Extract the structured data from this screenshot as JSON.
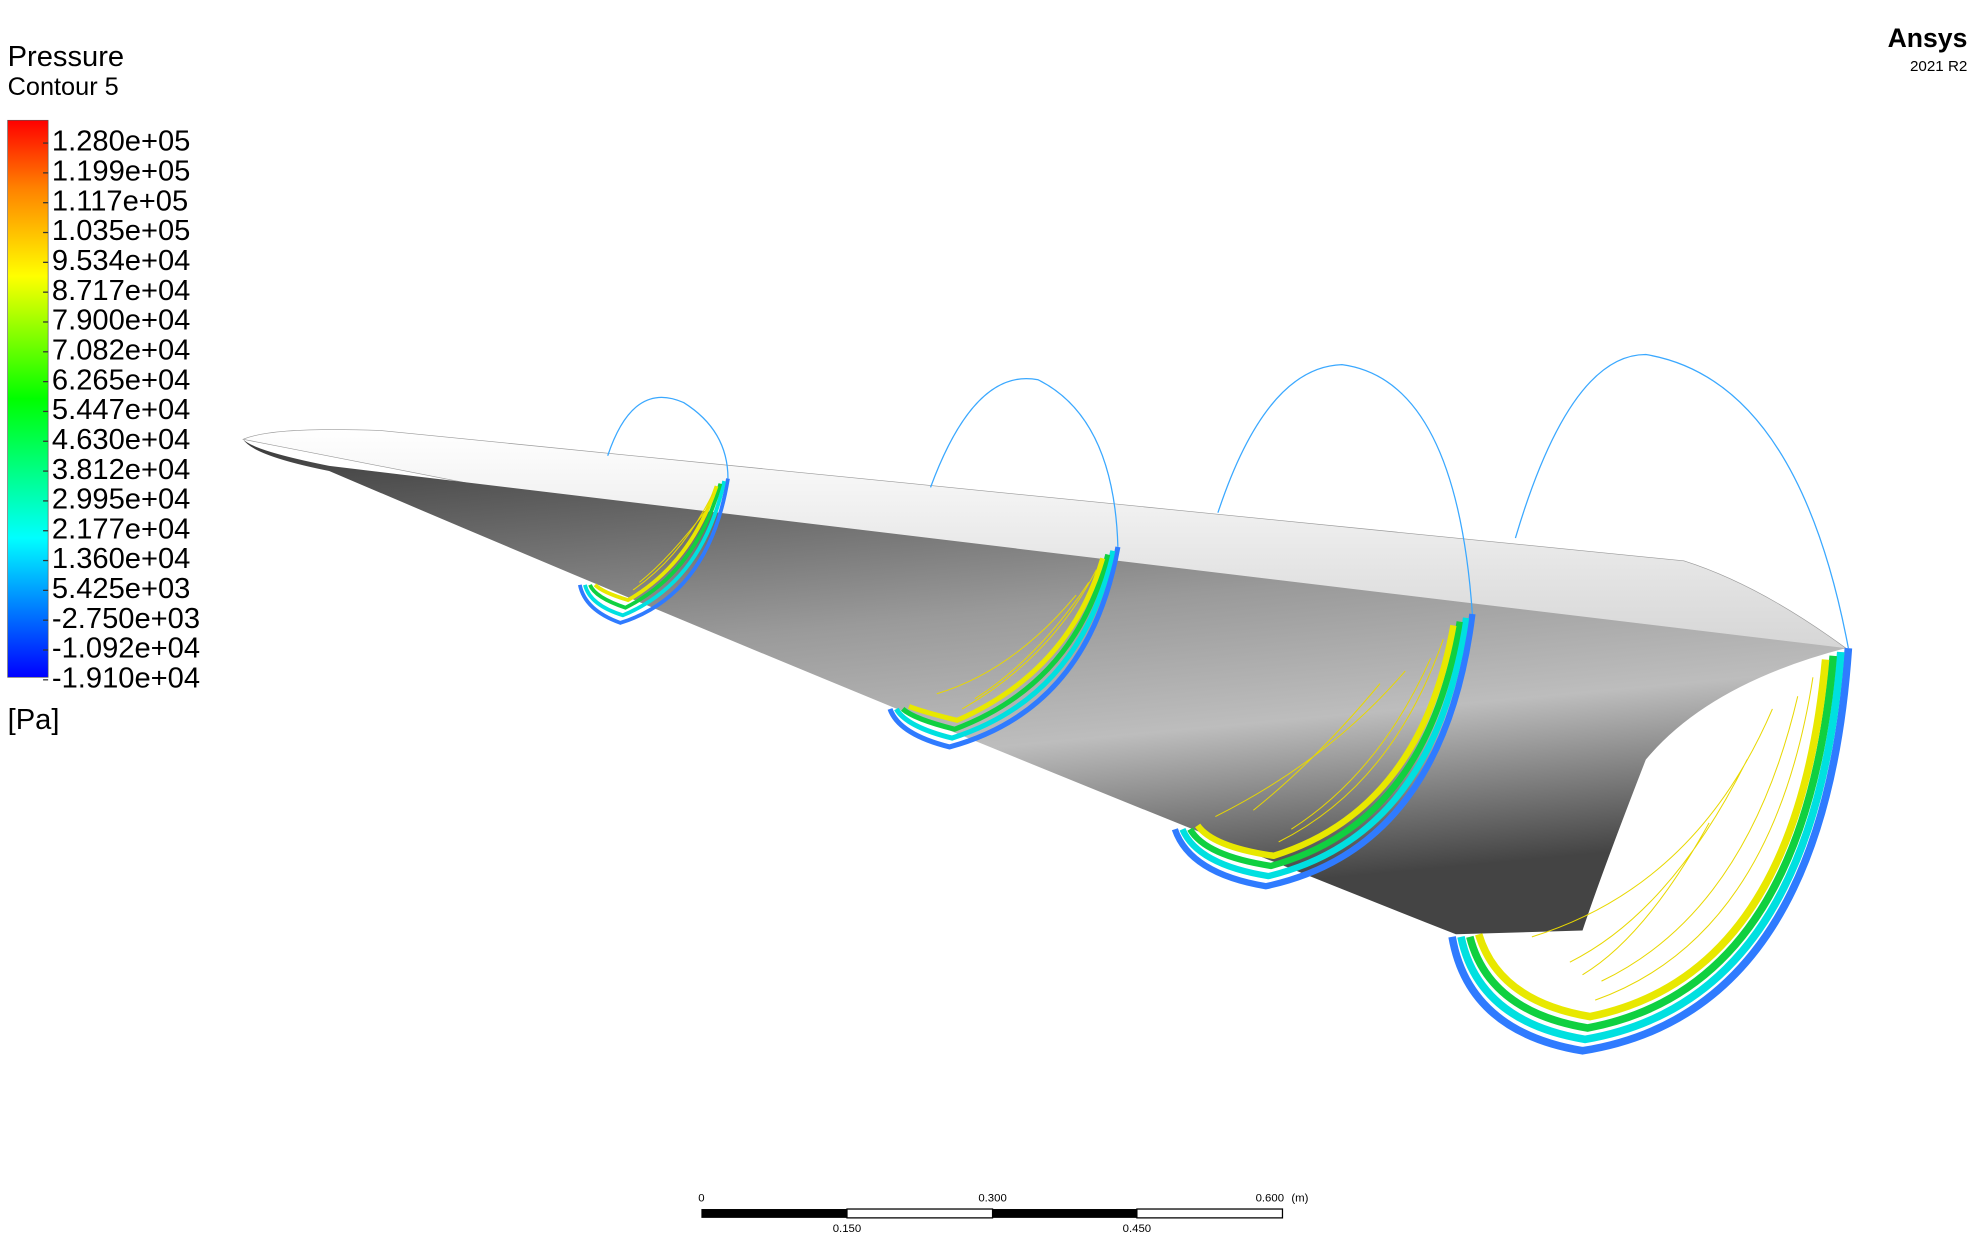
{
  "legend": {
    "title": "Pressure",
    "subtitle": "Contour 5",
    "levels": [
      "1.280e+05",
      "1.199e+05",
      "1.117e+05",
      "1.035e+05",
      "9.534e+04",
      "8.717e+04",
      "7.900e+04",
      "7.082e+04",
      "6.265e+04",
      "5.447e+04",
      "4.630e+04",
      "3.812e+04",
      "2.995e+04",
      "2.177e+04",
      "1.360e+04",
      "5.425e+03",
      "-2.750e+03",
      "-1.092e+04",
      "-1.910e+04"
    ],
    "unit": "[Pa]"
  },
  "brand": {
    "name": "Ansys",
    "version": "2021 R2"
  },
  "scale_bar": {
    "top_labels": [
      "0",
      "0.300",
      "0.600"
    ],
    "unit": "(m)",
    "bottom_labels": [
      "0.150",
      "0.450"
    ]
  }
}
